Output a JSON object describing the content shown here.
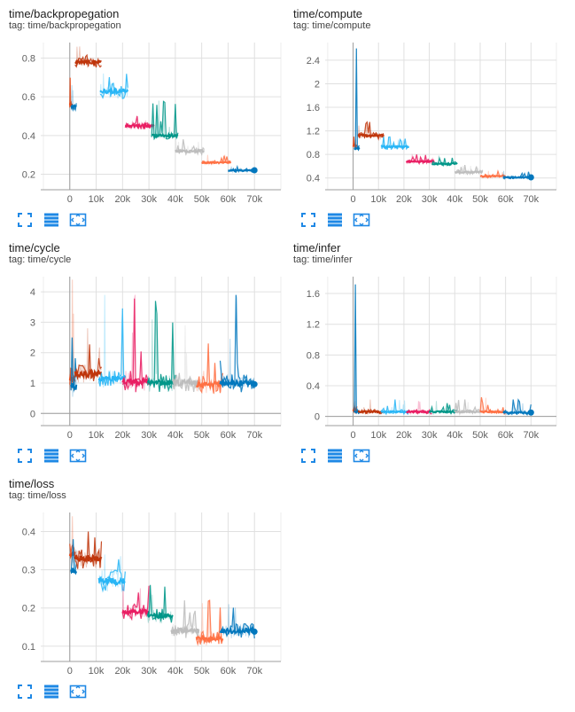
{
  "toolbar": {
    "icons": [
      "fullscreen-icon",
      "toggle-log-icon",
      "fit-domain-icon"
    ],
    "color": "#1e88e5"
  },
  "palette": {
    "run_1": "#e64a19",
    "run_2": "#0077bb",
    "run_3": "#f4511e",
    "run_4": "#bf360c",
    "run_5": "#29b6f6",
    "run_6": "#e91e63",
    "run_7": "#009688",
    "run_8": "#bdbdbd",
    "run_9": "#ff7043",
    "run_10": "#0277bd"
  },
  "cards": [
    {
      "title": "time/backpropegation",
      "tag": "tag: time/backpropegation",
      "chart_data": {
        "type": "line",
        "x_ticks": [
          "0",
          "10k",
          "20k",
          "30k",
          "40k",
          "50k",
          "60k",
          "70k"
        ],
        "x_tick_values": [
          0,
          10000,
          20000,
          30000,
          40000,
          50000,
          60000,
          70000
        ],
        "xlim": [
          -11000,
          80000
        ],
        "y_ticks": [
          "0.2",
          "0.4",
          "0.6",
          "0.8"
        ],
        "y_tick_values": [
          0.2,
          0.4,
          0.6,
          0.8
        ],
        "ylim": [
          0.12,
          0.88
        ],
        "series": [
          {
            "color": "#e64a19",
            "x_start": 0,
            "x_end": 800,
            "value": 0.56,
            "noise": 0.03,
            "spike": 0.7
          },
          {
            "color": "#0077bb",
            "x_start": 600,
            "x_end": 2500,
            "value": 0.55,
            "noise": 0.02,
            "spike": 0.66
          },
          {
            "color": "#bf360c",
            "x_start": 2000,
            "x_end": 12000,
            "value": 0.78,
            "noise": 0.03,
            "spike": 0.86
          },
          {
            "color": "#29b6f6",
            "x_start": 11500,
            "x_end": 22000,
            "value": 0.63,
            "noise": 0.04,
            "spike": 0.72
          },
          {
            "color": "#e91e63",
            "x_start": 21000,
            "x_end": 32000,
            "value": 0.45,
            "noise": 0.02,
            "spike": 0.5
          },
          {
            "color": "#009688",
            "x_start": 31000,
            "x_end": 41000,
            "value": 0.4,
            "noise": 0.02,
            "spike": 0.58
          },
          {
            "color": "#bdbdbd",
            "x_start": 40000,
            "x_end": 51000,
            "value": 0.32,
            "noise": 0.02,
            "spike": 0.38
          },
          {
            "color": "#ff7043",
            "x_start": 50000,
            "x_end": 61000,
            "value": 0.26,
            "noise": 0.01,
            "spike": 0.3
          },
          {
            "color": "#0277bd",
            "x_start": 60000,
            "x_end": 70000,
            "value": 0.22,
            "noise": 0.01,
            "spike": 0.24
          }
        ]
      }
    },
    {
      "title": "time/compute",
      "tag": "tag: time/compute",
      "chart_data": {
        "type": "line",
        "x_ticks": [
          "0",
          "10k",
          "20k",
          "30k",
          "40k",
          "50k",
          "60k",
          "70k"
        ],
        "x_tick_values": [
          0,
          10000,
          20000,
          30000,
          40000,
          50000,
          60000,
          70000
        ],
        "xlim": [
          -11000,
          80000
        ],
        "y_ticks": [
          "0.4",
          "0.8",
          "1.2",
          "1.6",
          "2",
          "2.4"
        ],
        "y_tick_values": [
          0.4,
          0.8,
          1.2,
          1.6,
          2.0,
          2.4
        ],
        "ylim": [
          0.2,
          2.7
        ],
        "series": [
          {
            "color": "#e64a19",
            "x_start": 0,
            "x_end": 1500,
            "value": 0.95,
            "noise": 0.05,
            "spike": 1.1
          },
          {
            "color": "#0077bb",
            "x_start": 500,
            "x_end": 2500,
            "value": 0.9,
            "noise": 0.05,
            "spike": 2.6
          },
          {
            "color": "#bf360c",
            "x_start": 2000,
            "x_end": 12000,
            "value": 1.12,
            "noise": 0.06,
            "spike": 1.35
          },
          {
            "color": "#29b6f6",
            "x_start": 11000,
            "x_end": 22000,
            "value": 0.93,
            "noise": 0.05,
            "spike": 1.1
          },
          {
            "color": "#e91e63",
            "x_start": 21000,
            "x_end": 32000,
            "value": 0.68,
            "noise": 0.04,
            "spike": 0.8
          },
          {
            "color": "#009688",
            "x_start": 31000,
            "x_end": 41000,
            "value": 0.64,
            "noise": 0.04,
            "spike": 0.78
          },
          {
            "color": "#bdbdbd",
            "x_start": 40000,
            "x_end": 51000,
            "value": 0.5,
            "noise": 0.04,
            "spike": 0.62
          },
          {
            "color": "#ff7043",
            "x_start": 50000,
            "x_end": 60000,
            "value": 0.43,
            "noise": 0.03,
            "spike": 0.52
          },
          {
            "color": "#0277bd",
            "x_start": 59000,
            "x_end": 70000,
            "value": 0.41,
            "noise": 0.03,
            "spike": 0.52
          }
        ]
      }
    },
    {
      "title": "time/cycle",
      "tag": "tag: time/cycle",
      "chart_data": {
        "type": "line",
        "x_ticks": [
          "0",
          "10k",
          "20k",
          "30k",
          "40k",
          "50k",
          "60k",
          "70k"
        ],
        "x_tick_values": [
          0,
          10000,
          20000,
          30000,
          40000,
          50000,
          60000,
          70000
        ],
        "xlim": [
          -11000,
          80000
        ],
        "y_ticks": [
          "0",
          "1",
          "2",
          "3",
          "4"
        ],
        "y_tick_values": [
          0,
          1,
          2,
          3,
          4
        ],
        "ylim": [
          -0.4,
          4.5
        ],
        "series": [
          {
            "color": "#e64a19",
            "x_start": 0,
            "x_end": 2000,
            "value": 1.1,
            "noise": 0.4,
            "spike": 4.4
          },
          {
            "color": "#0077bb",
            "x_start": 500,
            "x_end": 2500,
            "value": 0.9,
            "noise": 0.4,
            "spike": 2.5
          },
          {
            "color": "#bf360c",
            "x_start": 2000,
            "x_end": 12000,
            "value": 1.3,
            "noise": 0.35,
            "spike": 2.8
          },
          {
            "color": "#29b6f6",
            "x_start": 11000,
            "x_end": 21000,
            "value": 1.15,
            "noise": 0.3,
            "spike": 3.9
          },
          {
            "color": "#e91e63",
            "x_start": 20000,
            "x_end": 30000,
            "value": 1.05,
            "noise": 0.35,
            "spike": 3.9
          },
          {
            "color": "#009688",
            "x_start": 29500,
            "x_end": 40000,
            "value": 1.0,
            "noise": 0.3,
            "spike": 3.7
          },
          {
            "color": "#bdbdbd",
            "x_start": 39000,
            "x_end": 49000,
            "value": 1.0,
            "noise": 0.3,
            "spike": 2.9
          },
          {
            "color": "#ff7043",
            "x_start": 48000,
            "x_end": 58000,
            "value": 0.95,
            "noise": 0.3,
            "spike": 2.3
          },
          {
            "color": "#0277bd",
            "x_start": 57000,
            "x_end": 70000,
            "value": 1.0,
            "noise": 0.3,
            "spike": 3.9
          }
        ]
      }
    },
    {
      "title": "time/infer",
      "tag": "tag: time/infer",
      "chart_data": {
        "type": "line",
        "x_ticks": [
          "0",
          "10k",
          "20k",
          "30k",
          "40k",
          "50k",
          "60k",
          "70k"
        ],
        "x_tick_values": [
          0,
          10000,
          20000,
          30000,
          40000,
          50000,
          60000,
          70000
        ],
        "xlim": [
          -11000,
          80000
        ],
        "y_ticks": [
          "0",
          "0.4",
          "0.8",
          "1.2",
          "1.6"
        ],
        "y_tick_values": [
          0,
          0.4,
          0.8,
          1.2,
          1.6
        ],
        "ylim": [
          -0.12,
          1.82
        ],
        "series": [
          {
            "color": "#e64a19",
            "x_start": 0,
            "x_end": 1500,
            "value": 0.08,
            "noise": 0.04,
            "spike": 0.2
          },
          {
            "color": "#0077bb",
            "x_start": 500,
            "x_end": 2500,
            "value": 0.06,
            "noise": 0.03,
            "spike": 1.72
          },
          {
            "color": "#bf360c",
            "x_start": 2000,
            "x_end": 12000,
            "value": 0.06,
            "noise": 0.03,
            "spike": 0.22
          },
          {
            "color": "#29b6f6",
            "x_start": 11000,
            "x_end": 22000,
            "value": 0.06,
            "noise": 0.03,
            "spike": 0.22
          },
          {
            "color": "#e91e63",
            "x_start": 21000,
            "x_end": 31000,
            "value": 0.06,
            "noise": 0.03,
            "spike": 0.2
          },
          {
            "color": "#009688",
            "x_start": 30000,
            "x_end": 41000,
            "value": 0.06,
            "noise": 0.03,
            "spike": 0.2
          },
          {
            "color": "#bdbdbd",
            "x_start": 40000,
            "x_end": 51000,
            "value": 0.06,
            "noise": 0.03,
            "spike": 0.22
          },
          {
            "color": "#ff7043",
            "x_start": 50000,
            "x_end": 60000,
            "value": 0.06,
            "noise": 0.03,
            "spike": 0.25
          },
          {
            "color": "#0277bd",
            "x_start": 59000,
            "x_end": 70000,
            "value": 0.05,
            "noise": 0.03,
            "spike": 0.22
          }
        ]
      }
    },
    {
      "title": "time/loss",
      "tag": "tag: time/loss",
      "chart_data": {
        "type": "line",
        "x_ticks": [
          "0",
          "10k",
          "20k",
          "30k",
          "40k",
          "50k",
          "60k",
          "70k"
        ],
        "x_tick_values": [
          0,
          10000,
          20000,
          30000,
          40000,
          50000,
          60000,
          70000
        ],
        "xlim": [
          -11000,
          80000
        ],
        "y_ticks": [
          "0.1",
          "0.2",
          "0.3",
          "0.4"
        ],
        "y_tick_values": [
          0.1,
          0.2,
          0.3,
          0.4
        ],
        "ylim": [
          0.06,
          0.45
        ],
        "series": [
          {
            "color": "#e64a19",
            "x_start": 0,
            "x_end": 2000,
            "value": 0.34,
            "noise": 0.03,
            "spike": 0.44
          },
          {
            "color": "#0077bb",
            "x_start": 500,
            "x_end": 2500,
            "value": 0.3,
            "noise": 0.03,
            "spike": 0.38
          },
          {
            "color": "#bf360c",
            "x_start": 2000,
            "x_end": 12000,
            "value": 0.33,
            "noise": 0.03,
            "spike": 0.4
          },
          {
            "color": "#29b6f6",
            "x_start": 11000,
            "x_end": 21000,
            "value": 0.27,
            "noise": 0.03,
            "spike": 0.34
          },
          {
            "color": "#e91e63",
            "x_start": 20000,
            "x_end": 30000,
            "value": 0.19,
            "noise": 0.02,
            "spike": 0.26
          },
          {
            "color": "#009688",
            "x_start": 29500,
            "x_end": 39000,
            "value": 0.18,
            "noise": 0.02,
            "spike": 0.26
          },
          {
            "color": "#bdbdbd",
            "x_start": 38500,
            "x_end": 49000,
            "value": 0.14,
            "noise": 0.02,
            "spike": 0.22
          },
          {
            "color": "#ff7043",
            "x_start": 48000,
            "x_end": 58000,
            "value": 0.12,
            "noise": 0.02,
            "spike": 0.22
          },
          {
            "color": "#0277bd",
            "x_start": 57000,
            "x_end": 70000,
            "value": 0.14,
            "noise": 0.02,
            "spike": 0.21
          }
        ]
      }
    }
  ]
}
